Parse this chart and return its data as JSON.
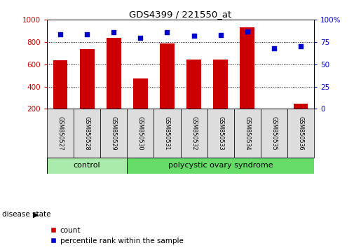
{
  "title": "GDS4399 / 221550_at",
  "samples": [
    "GSM850527",
    "GSM850528",
    "GSM850529",
    "GSM850530",
    "GSM850531",
    "GSM850532",
    "GSM850533",
    "GSM850534",
    "GSM850535",
    "GSM850536"
  ],
  "counts": [
    635,
    740,
    840,
    475,
    790,
    645,
    645,
    930,
    155,
    245
  ],
  "percentiles": [
    84,
    84,
    86,
    80,
    86,
    82,
    83,
    87,
    68,
    70
  ],
  "bar_color": "#cc0000",
  "dot_color": "#0000cc",
  "ylim_left": [
    200,
    1000
  ],
  "ylim_right": [
    0,
    100
  ],
  "yticks_left": [
    200,
    400,
    600,
    800,
    1000
  ],
  "yticks_right": [
    0,
    25,
    50,
    75,
    100
  ],
  "control_samples": 3,
  "control_label": "control",
  "disease_label": "polycystic ovary syndrome",
  "control_color": "#aaeaaa",
  "disease_color": "#66dd66",
  "sample_box_color": "#dddddd",
  "disease_state_label": "disease state",
  "legend_count_label": "count",
  "legend_pct_label": "percentile rank within the sample",
  "background_color": "#ffffff",
  "tick_label_color_left": "#cc0000",
  "tick_label_color_right": "#0000cc"
}
